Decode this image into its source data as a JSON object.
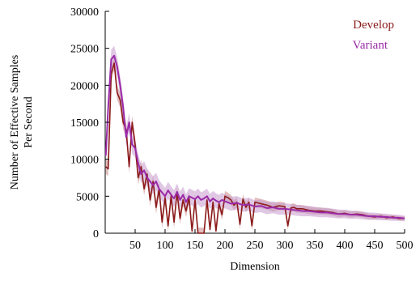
{
  "chart_data": {
    "type": "line",
    "title": "",
    "xlabel": "Dimension",
    "ylabel": [
      "Number of Effective Samples",
      "Per Second"
    ],
    "xlim": [
      0,
      500
    ],
    "ylim": [
      0,
      30000
    ],
    "xticks": [
      50,
      100,
      150,
      200,
      250,
      300,
      350,
      400,
      450,
      500
    ],
    "yticks": [
      0,
      5000,
      10000,
      15000,
      20000,
      25000,
      30000
    ],
    "grid": false,
    "legend_position": "top-right",
    "series": [
      {
        "name": "Develop",
        "color": "#8b1a1a",
        "band_color": "#c98a8a",
        "x": [
          1,
          5,
          10,
          15,
          20,
          25,
          30,
          35,
          40,
          45,
          50,
          55,
          60,
          65,
          70,
          75,
          80,
          85,
          90,
          95,
          100,
          105,
          110,
          115,
          120,
          125,
          130,
          135,
          140,
          145,
          150,
          155,
          160,
          165,
          170,
          175,
          180,
          185,
          190,
          195,
          200,
          205,
          210,
          215,
          220,
          225,
          230,
          235,
          240,
          245,
          250,
          260,
          270,
          280,
          290,
          300,
          305,
          310,
          315,
          320,
          330,
          340,
          350,
          360,
          370,
          380,
          390,
          400,
          410,
          420,
          430,
          440,
          450,
          460,
          470,
          480,
          490,
          500
        ],
        "values": [
          9000,
          8700,
          21500,
          23000,
          19000,
          18000,
          15000,
          14000,
          9000,
          15000,
          12000,
          7500,
          9000,
          6000,
          8000,
          4500,
          7000,
          3500,
          6000,
          1500,
          4800,
          1000,
          5000,
          1500,
          5500,
          2000,
          4500,
          3000,
          4800,
          300,
          4500,
          0,
          0,
          0,
          4500,
          500,
          4200,
          300,
          4000,
          2500,
          5000,
          4800,
          4500,
          3800,
          4200,
          1200,
          4600,
          3500,
          4200,
          1000,
          4200,
          4000,
          3800,
          3500,
          3700,
          3600,
          1000,
          3400,
          3500,
          3300,
          3300,
          3100,
          3000,
          3000,
          2900,
          2800,
          2600,
          2700,
          2500,
          2600,
          2500,
          2300,
          2200,
          2300,
          2100,
          2200,
          2000,
          2000
        ]
      },
      {
        "name": "Variant",
        "color": "#9b2aa8",
        "band_color": "#c79acd",
        "x": [
          1,
          5,
          10,
          15,
          20,
          25,
          30,
          35,
          40,
          45,
          50,
          55,
          60,
          65,
          70,
          75,
          80,
          85,
          90,
          95,
          100,
          105,
          110,
          115,
          120,
          125,
          130,
          135,
          140,
          145,
          150,
          155,
          160,
          165,
          170,
          175,
          180,
          185,
          190,
          195,
          200,
          210,
          220,
          230,
          240,
          250,
          260,
          270,
          280,
          290,
          300,
          310,
          320,
          330,
          340,
          350,
          360,
          370,
          380,
          390,
          400,
          410,
          420,
          430,
          440,
          450,
          460,
          470,
          480,
          490,
          500
        ],
        "values": [
          10500,
          17000,
          23500,
          24000,
          22500,
          20000,
          17000,
          13000,
          15000,
          12000,
          11500,
          9500,
          8000,
          8500,
          7500,
          7000,
          6500,
          7000,
          6000,
          5500,
          5000,
          5800,
          5200,
          4700,
          5600,
          4500,
          5200,
          4200,
          5000,
          4800,
          4600,
          5000,
          4500,
          4700,
          5000,
          4300,
          4700,
          4400,
          4200,
          4500,
          4300,
          4000,
          4100,
          3800,
          3900,
          3600,
          3700,
          3400,
          3500,
          3300,
          3300,
          3200,
          3100,
          3000,
          3000,
          2900,
          2800,
          2800,
          2700,
          2600,
          2600,
          2500,
          2500,
          2400,
          2300,
          2300,
          2200,
          2200,
          2100,
          2100,
          2000
        ]
      }
    ]
  }
}
